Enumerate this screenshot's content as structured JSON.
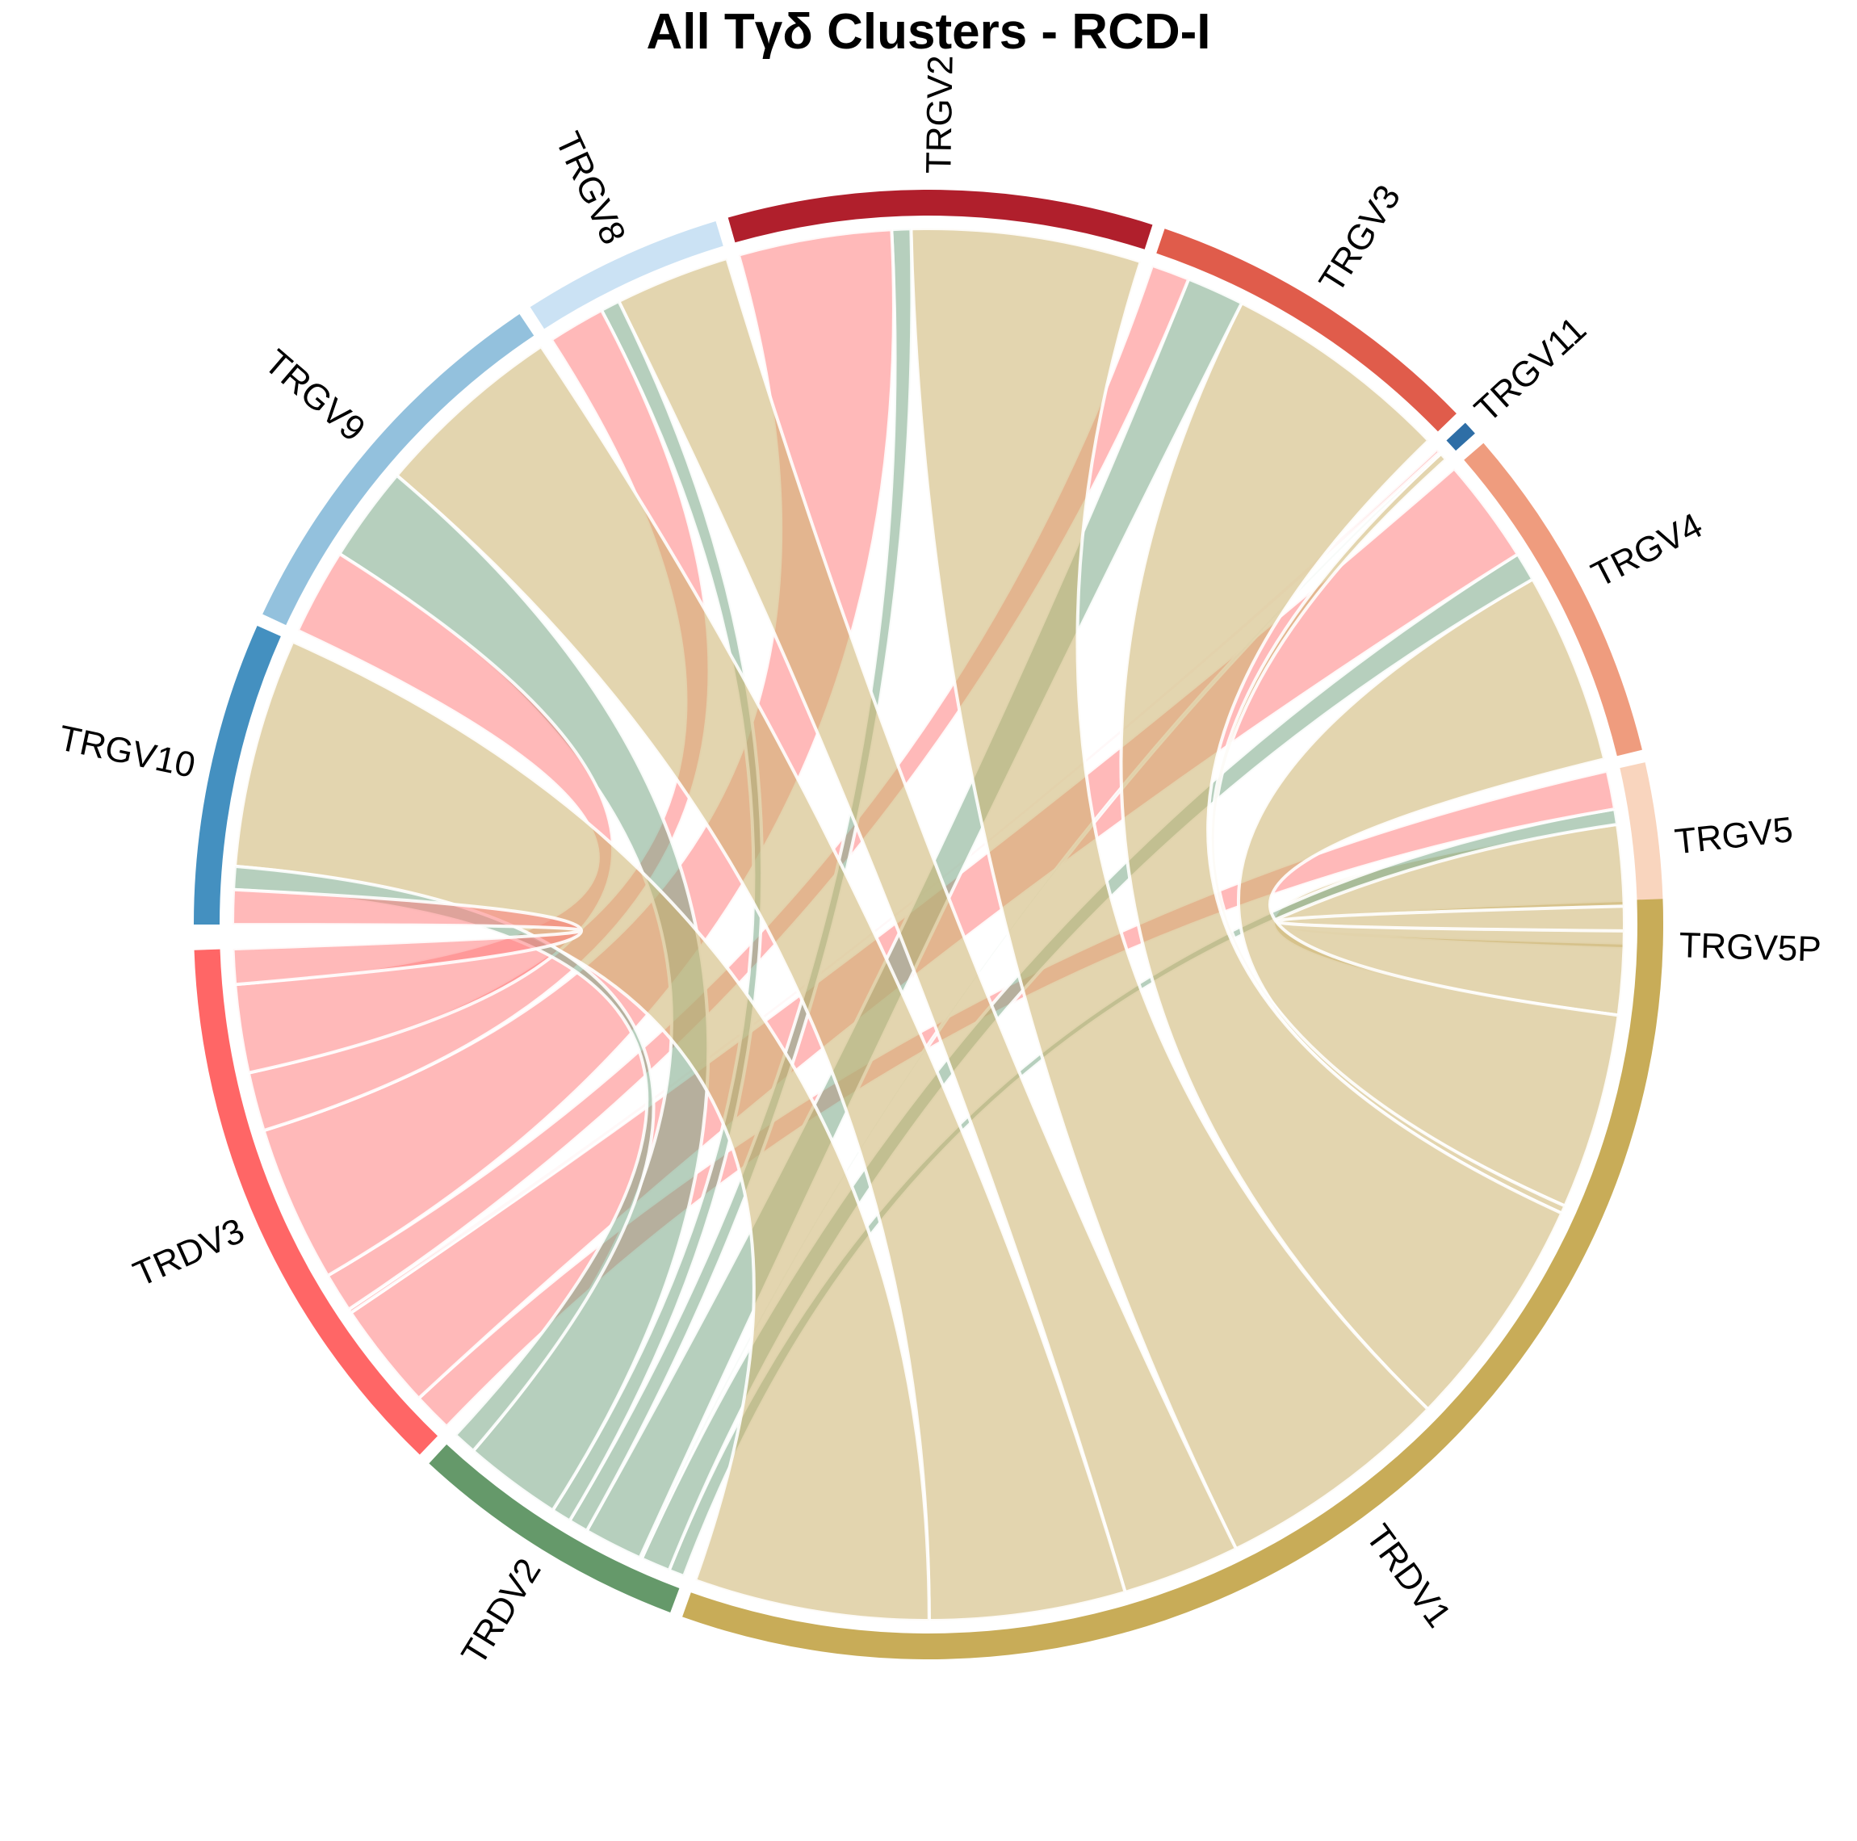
{
  "chart_data": {
    "type": "chord",
    "title": "All Tγδ Clusters - RCD-I",
    "sectors": [
      {
        "name": "TRGV5P",
        "color": "#fde0cf",
        "group": "TRG"
      },
      {
        "name": "TRGV5",
        "color": "#f9d5be",
        "group": "TRG"
      },
      {
        "name": "TRGV4",
        "color": "#ef9c7e",
        "group": "TRG"
      },
      {
        "name": "TRGV11",
        "color": "#2e6ea6",
        "group": "TRG"
      },
      {
        "name": "TRGV3",
        "color": "#e05c4b",
        "group": "TRG"
      },
      {
        "name": "TRGV2",
        "color": "#b01f2c",
        "group": "TRG"
      },
      {
        "name": "TRGV8",
        "color": "#cbe2f4",
        "group": "TRG"
      },
      {
        "name": "TRGV9",
        "color": "#93c1dd",
        "group": "TRG"
      },
      {
        "name": "TRGV10",
        "color": "#4490c0",
        "group": "TRG"
      },
      {
        "name": "TRDV3",
        "color": "#ff6666",
        "group": "TRD"
      },
      {
        "name": "TRDV2",
        "color": "#65996a",
        "group": "TRD"
      },
      {
        "name": "TRDV1",
        "color": "#c8ac58",
        "group": "TRD"
      }
    ],
    "links": [
      {
        "from": "TRGV5P",
        "to": "TRDV1",
        "value": 0.3
      },
      {
        "from": "TRGV5",
        "to": "TRDV1",
        "value": 5.5
      },
      {
        "from": "TRGV5",
        "to": "TRDV2",
        "value": 0.8
      },
      {
        "from": "TRGV5",
        "to": "TRDV3",
        "value": 2.0
      },
      {
        "from": "TRGV4",
        "to": "TRDV1",
        "value": 10.0
      },
      {
        "from": "TRGV4",
        "to": "TRDV2",
        "value": 1.5
      },
      {
        "from": "TRGV4",
        "to": "TRDV3",
        "value": 5.5
      },
      {
        "from": "TRGV11",
        "to": "TRDV1",
        "value": 0.4
      },
      {
        "from": "TRGV11",
        "to": "TRDV2",
        "value": 0.1
      },
      {
        "from": "TRGV11",
        "to": "TRDV3",
        "value": 0.2
      },
      {
        "from": "TRGV3",
        "to": "TRDV1",
        "value": 12.0
      },
      {
        "from": "TRGV3",
        "to": "TRDV2",
        "value": 3.0
      },
      {
        "from": "TRGV3",
        "to": "TRDV3",
        "value": 2.0
      },
      {
        "from": "TRGV2",
        "to": "TRDV1",
        "value": 12.0
      },
      {
        "from": "TRGV2",
        "to": "TRDV2",
        "value": 1.0
      },
      {
        "from": "TRGV2",
        "to": "TRDV3",
        "value": 8.0
      },
      {
        "from": "TRGV8",
        "to": "TRDV1",
        "value": 6.0
      },
      {
        "from": "TRGV8",
        "to": "TRDV2",
        "value": 1.0
      },
      {
        "from": "TRGV8",
        "to": "TRDV3",
        "value": 3.0
      },
      {
        "from": "TRGV9",
        "to": "TRDV1",
        "value": 10.0
      },
      {
        "from": "TRGV9",
        "to": "TRDV2",
        "value": 5.0
      },
      {
        "from": "TRGV9",
        "to": "TRDV3",
        "value": 4.5
      },
      {
        "from": "TRGV10",
        "to": "TRDV1",
        "value": 12.0
      },
      {
        "from": "TRGV10",
        "to": "TRDV2",
        "value": 1.2
      },
      {
        "from": "TRGV10",
        "to": "TRDV3",
        "value": 1.8
      }
    ],
    "link_colors": {
      "TRDV1": "#ccb36e",
      "TRDV2": "#7aa887",
      "TRDV3": "#ff8080"
    }
  }
}
